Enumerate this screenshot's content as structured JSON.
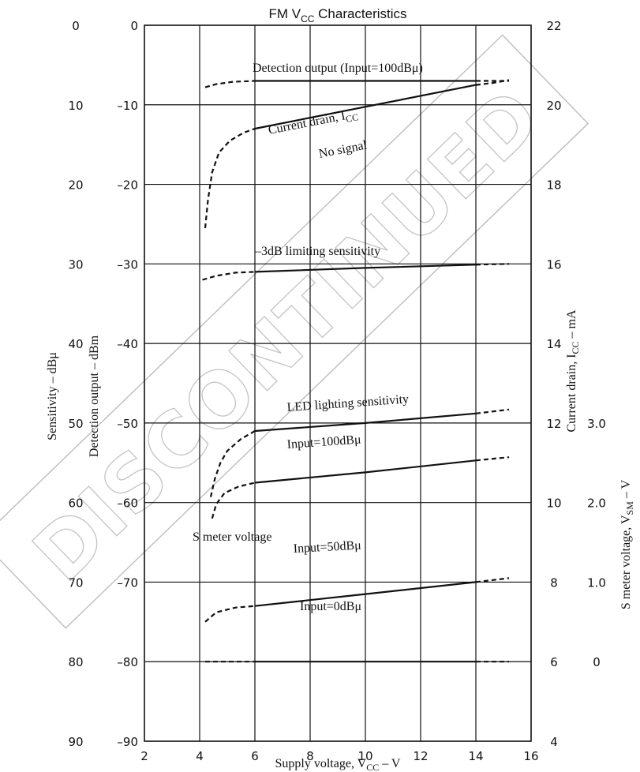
{
  "chart_data": {
    "type": "line",
    "title": "FM V",
    "title_sub": "CC",
    "title_rest": " Characteristics",
    "xlabel": "Supply voltage, V",
    "xlabel_sub": "CC",
    "xlabel_unit": "  –  V",
    "xlim": [
      2,
      16
    ],
    "x_ticks": [
      "2",
      "4",
      "6",
      "8",
      "10",
      "12",
      "14",
      "16"
    ],
    "axes": {
      "sensitivity": {
        "label": "Sensitivity  –  dBμ",
        "range": [
          0,
          90
        ],
        "ticks": [
          "0",
          "10",
          "20",
          "30",
          "40",
          "50",
          "60",
          "70",
          "80",
          "90"
        ]
      },
      "detection_output": {
        "label": "Detection output  –  dBm",
        "range": [
          0,
          -90
        ],
        "ticks": [
          "0",
          "–10",
          "–20",
          "–30",
          "–40",
          "–50",
          "–60",
          "–70",
          "–80",
          "–90"
        ]
      },
      "current_drain": {
        "label": "Current drain, I",
        "label_sub": "CC",
        "label_unit": "  –  mA",
        "range": [
          22,
          4
        ],
        "ticks": [
          "22",
          "20",
          "18",
          "16",
          "14",
          "12",
          "10",
          "8",
          "6",
          "4"
        ]
      },
      "s_meter": {
        "label": "S meter voltage, V",
        "label_sub": "SM",
        "label_unit": "  –  V",
        "range": [
          0,
          3.0
        ],
        "ticks": [
          "0",
          "1.0",
          "2.0",
          "3.0"
        ]
      }
    },
    "series": [
      {
        "axis": "detection_output",
        "points": [
          [
            4.2,
            -7.8
          ],
          [
            4.6,
            -7.4
          ],
          [
            5.2,
            -7.1
          ],
          [
            6,
            -7
          ],
          [
            10,
            -7
          ],
          [
            14,
            -7
          ],
          [
            14.6,
            -7.0
          ],
          [
            15.2,
            -7.0
          ]
        ],
        "solid_range": [
          6,
          14
        ]
      },
      {
        "axis": "current_drain",
        "points": [
          [
            4.2,
            16.9
          ],
          [
            4.3,
            17.6
          ],
          [
            4.45,
            18.3
          ],
          [
            4.7,
            18.8
          ],
          [
            5.1,
            19.1
          ],
          [
            5.6,
            19.3
          ],
          [
            6,
            19.4
          ],
          [
            10,
            19.95
          ],
          [
            14,
            20.5
          ],
          [
            14.6,
            20.55
          ],
          [
            15.2,
            20.62
          ]
        ],
        "solid_range": [
          6,
          14
        ]
      },
      {
        "axis": "sensitivity",
        "points": [
          [
            4.1,
            32
          ],
          [
            4.6,
            31.5
          ],
          [
            5.3,
            31.1
          ],
          [
            6,
            31
          ],
          [
            10,
            30.5
          ],
          [
            14,
            30.1
          ],
          [
            15.2,
            30
          ]
        ],
        "solid_range": [
          6,
          14
        ]
      },
      {
        "axis": "sensitivity",
        "points": [
          [
            4.4,
            59.3
          ],
          [
            4.55,
            57
          ],
          [
            4.75,
            55
          ],
          [
            5.0,
            53.5
          ],
          [
            5.5,
            52
          ],
          [
            6,
            51
          ],
          [
            10,
            50
          ],
          [
            14,
            48.8
          ],
          [
            15.2,
            48.3
          ]
        ],
        "solid_range": [
          6,
          14
        ]
      },
      {
        "axis": "s_meter",
        "points": [
          [
            4.45,
            1.8
          ],
          [
            4.6,
            1.98
          ],
          [
            4.9,
            2.12
          ],
          [
            5.4,
            2.2
          ],
          [
            6,
            2.25
          ],
          [
            10,
            2.38
          ],
          [
            14,
            2.53
          ],
          [
            15.2,
            2.57
          ]
        ],
        "solid_range": [
          6,
          14
        ]
      },
      {
        "axis": "s_meter",
        "points": [
          [
            4.2,
            0.5
          ],
          [
            4.6,
            0.62
          ],
          [
            5.3,
            0.68
          ],
          [
            6,
            0.7
          ],
          [
            10,
            0.85
          ],
          [
            14,
            1.0
          ],
          [
            15.2,
            1.05
          ]
        ],
        "solid_range": [
          6,
          14
        ]
      },
      {
        "axis": "s_meter",
        "points": [
          [
            4.2,
            0.0
          ],
          [
            6,
            0.0
          ],
          [
            10,
            0.0
          ],
          [
            14,
            0.0
          ],
          [
            15.2,
            0.0
          ]
        ],
        "solid_range": [
          6,
          14
        ]
      }
    ],
    "annotations": {
      "detection_output": "Detection output (Input=100dBμ)",
      "current_drain": "Current drain, I",
      "current_drain_sub": "CC",
      "no_signal": "No signal",
      "limiting": "–3dB limiting sensitivity",
      "led": "LED lighting sensitivity",
      "input_100": "Input=100dBμ",
      "s_meter": "S meter voltage",
      "input_50": "Input=50dBμ",
      "input_0": "Input=0dBμ"
    },
    "grid": true
  },
  "watermark": "DISCONTINUED"
}
